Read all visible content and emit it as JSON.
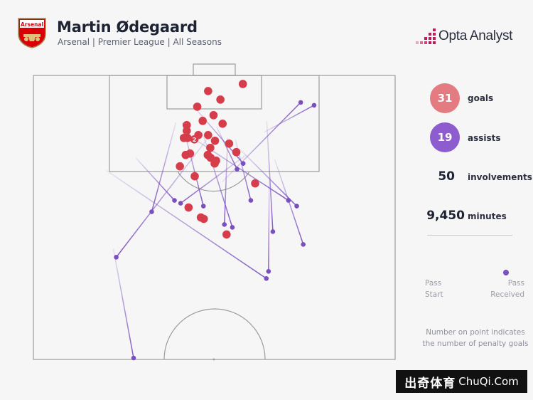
{
  "header": {
    "badge_text": "Arsenal",
    "title": "Martin Ødegaard",
    "subtitle": "Arsenal | Premier League | All Seasons",
    "brand": "Opta Analyst"
  },
  "stats": {
    "goals_value": "31",
    "goals_label": "goals",
    "assists_value": "19",
    "assists_label": "assists",
    "involvements_value": "50",
    "involvements_label": "involvements",
    "minutes_value": "9,450",
    "minutes_label": "minutes"
  },
  "legend": {
    "pass_start_1": "Pass",
    "pass_start_2": "Start",
    "pass_received_1": "Pass",
    "pass_received_2": "Received"
  },
  "note": {
    "line1": "Number on point indicates",
    "line2": "the number of penalty goals"
  },
  "watermark": {
    "cn": "出奇体育",
    "en": "ChuQi.Com"
  },
  "colors": {
    "goal": "#d63d4b",
    "assist": "#7a4fbf",
    "goal_circle": "#e47b80",
    "assist_circle": "#8d5ccf",
    "pitch_line": "#9c9c9c"
  },
  "chart_data": {
    "type": "scatter",
    "coordinate_system": "attacking half, x = width 0-100 (left to right), y = distance from goal line 0-100 (goal line to halfway line)",
    "goals": [
      {
        "x": 57.9,
        "y": 3.0
      },
      {
        "x": 48.3,
        "y": 5.5
      },
      {
        "x": 51.7,
        "y": 8.5
      },
      {
        "x": 45.3,
        "y": 11.0
      },
      {
        "x": 49.8,
        "y": 14.0
      },
      {
        "x": 46.8,
        "y": 16.0
      },
      {
        "x": 42.4,
        "y": 17.5
      },
      {
        "x": 42.4,
        "y": 19.5
      },
      {
        "x": 45.6,
        "y": 21.0
      },
      {
        "x": 48.3,
        "y": 21.0
      },
      {
        "x": 41.6,
        "y": 22.0
      },
      {
        "x": 42.6,
        "y": 22.0
      },
      {
        "x": 44.5,
        "y": 22.5,
        "penalties": 2
      },
      {
        "x": 50.2,
        "y": 23.0
      },
      {
        "x": 54.1,
        "y": 24.0
      },
      {
        "x": 48.9,
        "y": 25.5
      },
      {
        "x": 56.1,
        "y": 27.0
      },
      {
        "x": 43.3,
        "y": 27.5
      },
      {
        "x": 42.1,
        "y": 28.0
      },
      {
        "x": 48.2,
        "y": 28.0
      },
      {
        "x": 49.0,
        "y": 29.0
      },
      {
        "x": 50.5,
        "y": 30.0
      },
      {
        "x": 50.1,
        "y": 31.0
      },
      {
        "x": 44.6,
        "y": 35.5
      },
      {
        "x": 61.3,
        "y": 38.0
      },
      {
        "x": 42.9,
        "y": 46.5
      },
      {
        "x": 46.3,
        "y": 50.0
      },
      {
        "x": 47.1,
        "y": 50.5
      },
      {
        "x": 53.4,
        "y": 56.0
      },
      {
        "x": 40.5,
        "y": 32.0
      },
      {
        "x": 52.3,
        "y": 17.0
      }
    ],
    "assists": [
      {
        "start": {
          "x": 44.0,
          "y": 10.5
        },
        "end": {
          "x": 58.0,
          "y": 31.0
        }
      },
      {
        "start": {
          "x": 39.4,
          "y": 16.5
        },
        "end": {
          "x": 32.7,
          "y": 48.0
        }
      },
      {
        "start": {
          "x": 41.1,
          "y": 16.5
        },
        "end": {
          "x": 47.0,
          "y": 46.0
        }
      },
      {
        "start": {
          "x": 41.6,
          "y": 20.0
        },
        "end": {
          "x": 70.5,
          "y": 44.0
        }
      },
      {
        "start": {
          "x": 46.6,
          "y": 19.5
        },
        "end": {
          "x": 55.0,
          "y": 53.5
        }
      },
      {
        "start": {
          "x": 50.6,
          "y": 18.0
        },
        "end": {
          "x": 56.3,
          "y": 33.0
        }
      },
      {
        "start": {
          "x": 53.7,
          "y": 22.0
        },
        "end": {
          "x": 52.8,
          "y": 52.5
        }
      },
      {
        "start": {
          "x": 55.8,
          "y": 22.5
        },
        "end": {
          "x": 60.1,
          "y": 44.0
        }
      },
      {
        "start": {
          "x": 57.1,
          "y": 26.0
        },
        "end": {
          "x": 72.8,
          "y": 46.0
        }
      },
      {
        "start": {
          "x": 52.2,
          "y": 37.5
        },
        "end": {
          "x": 73.9,
          "y": 9.5
        }
      },
      {
        "start": {
          "x": 64.5,
          "y": 16.0
        },
        "end": {
          "x": 66.2,
          "y": 55.0
        }
      },
      {
        "start": {
          "x": 65.2,
          "y": 37.0
        },
        "end": {
          "x": 65.0,
          "y": 69.0
        }
      },
      {
        "start": {
          "x": 66.7,
          "y": 29.5
        },
        "end": {
          "x": 74.6,
          "y": 59.5
        }
      },
      {
        "start": {
          "x": 63.8,
          "y": 20.0
        },
        "end": {
          "x": 77.6,
          "y": 10.5
        }
      },
      {
        "start": {
          "x": 58.8,
          "y": 28.0
        },
        "end": {
          "x": 40.7,
          "y": 45.0
        }
      },
      {
        "start": {
          "x": 48.9,
          "y": 21.0
        },
        "end": {
          "x": 22.9,
          "y": 64.0
        }
      },
      {
        "start": {
          "x": 28.3,
          "y": 29.0
        },
        "end": {
          "x": 39.0,
          "y": 44.0
        }
      },
      {
        "start": {
          "x": 20.2,
          "y": 33.5
        },
        "end": {
          "x": 64.4,
          "y": 71.5
        }
      },
      {
        "start": {
          "x": 22.1,
          "y": 61.0
        },
        "end": {
          "x": 27.7,
          "y": 99.5
        }
      }
    ]
  }
}
